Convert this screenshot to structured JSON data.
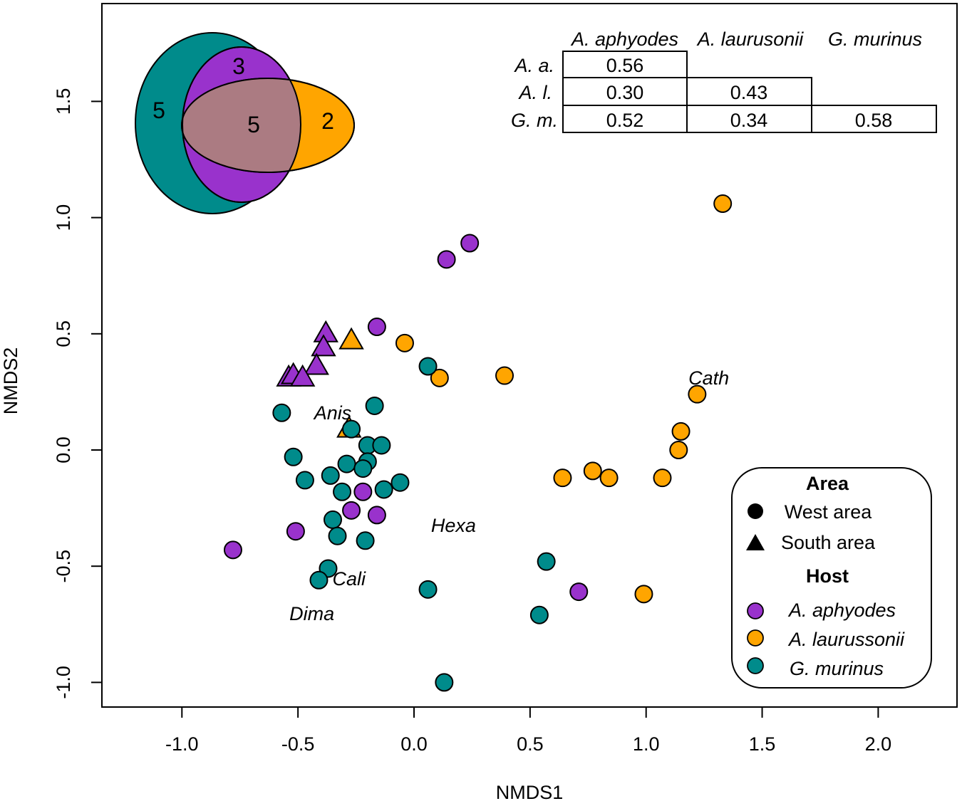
{
  "chart_data": {
    "type": "scatter",
    "xlabel": "NMDS1",
    "ylabel": "NMDS2",
    "xlim": [
      -1.34,
      2.34
    ],
    "ylim": [
      -1.1,
      1.92
    ],
    "xticks": [
      "-1.0",
      "-0.5",
      "0.0",
      "0.5",
      "1.0",
      "1.5",
      "2.0"
    ],
    "xtick_values": [
      -1.0,
      -0.5,
      0.0,
      0.5,
      1.0,
      1.5,
      2.0
    ],
    "yticks": [
      "-1.0",
      "-0.5",
      "0.0",
      "0.5",
      "1.0",
      "1.5"
    ],
    "ytick_values": [
      -1.0,
      -0.5,
      0.0,
      0.5,
      1.0,
      1.5
    ],
    "grid": false,
    "colors": {
      "A. aphyodes": "#9932CC",
      "A. laurussonii": "#FFA500",
      "G. murinus": "#008B8B",
      "overlap": "#AB7B82"
    },
    "series": [
      {
        "name": "A. aphyodes",
        "area": "West area",
        "marker": "circle",
        "color": "#9932CC",
        "points": [
          [
            0.14,
            0.82
          ],
          [
            0.24,
            0.89
          ],
          [
            -0.16,
            0.53
          ],
          [
            -0.22,
            -0.18
          ],
          [
            -0.27,
            -0.26
          ],
          [
            -0.16,
            -0.28
          ],
          [
            -0.51,
            -0.35
          ],
          [
            -0.78,
            -0.43
          ],
          [
            0.71,
            -0.61
          ]
        ]
      },
      {
        "name": "A. aphyodes",
        "area": "South area",
        "marker": "triangle",
        "color": "#9932CC",
        "points": [
          [
            -0.38,
            0.5
          ],
          [
            -0.39,
            0.44
          ],
          [
            -0.42,
            0.36
          ],
          [
            -0.54,
            0.31
          ],
          [
            -0.52,
            0.32
          ],
          [
            -0.48,
            0.31
          ]
        ]
      },
      {
        "name": "A. laurussonii",
        "area": "West area",
        "marker": "circle",
        "color": "#FFA500",
        "points": [
          [
            1.33,
            1.06
          ],
          [
            -0.04,
            0.46
          ],
          [
            0.11,
            0.31
          ],
          [
            0.39,
            0.32
          ],
          [
            1.22,
            0.24
          ],
          [
            1.15,
            0.08
          ],
          [
            1.14,
            0.0
          ],
          [
            0.64,
            -0.12
          ],
          [
            0.77,
            -0.09
          ],
          [
            0.84,
            -0.12
          ],
          [
            1.07,
            -0.12
          ],
          [
            0.99,
            -0.62
          ]
        ]
      },
      {
        "name": "A. laurussonii",
        "area": "South area",
        "marker": "triangle",
        "color": "#FFA500",
        "points": [
          [
            -0.27,
            0.47
          ],
          [
            -0.28,
            0.09
          ]
        ]
      },
      {
        "name": "G. murinus",
        "area": "West area",
        "marker": "circle",
        "color": "#008B8B",
        "points": [
          [
            0.06,
            0.36
          ],
          [
            -0.57,
            0.16
          ],
          [
            -0.17,
            0.19
          ],
          [
            -0.27,
            0.09
          ],
          [
            -0.2,
            0.02
          ],
          [
            -0.14,
            0.02
          ],
          [
            -0.52,
            -0.03
          ],
          [
            -0.2,
            -0.05
          ],
          [
            -0.29,
            -0.06
          ],
          [
            -0.22,
            -0.08
          ],
          [
            -0.36,
            -0.11
          ],
          [
            -0.47,
            -0.13
          ],
          [
            -0.31,
            -0.18
          ],
          [
            -0.13,
            -0.17
          ],
          [
            -0.06,
            -0.14
          ],
          [
            -0.35,
            -0.3
          ],
          [
            -0.33,
            -0.37
          ],
          [
            -0.21,
            -0.39
          ],
          [
            -0.37,
            -0.51
          ],
          [
            -0.41,
            -0.56
          ],
          [
            0.06,
            -0.6
          ],
          [
            0.57,
            -0.48
          ],
          [
            0.54,
            -0.71
          ],
          [
            0.13,
            -1.0
          ]
        ]
      }
    ],
    "annotations": [
      {
        "text": "Anis",
        "x": -0.35,
        "y": 0.16
      },
      {
        "text": "Cali",
        "x": -0.28,
        "y": -0.555
      },
      {
        "text": "Dima",
        "x": -0.44,
        "y": -0.705
      },
      {
        "text": "Hexa",
        "x": 0.17,
        "y": -0.325
      },
      {
        "text": "Cath",
        "x": 1.27,
        "y": 0.31
      }
    ],
    "venn": {
      "G. murinus only": "5",
      "A. aphyodes only": "3",
      "shared": "5",
      "A. laurussonii only": "2"
    },
    "similarity_table": {
      "columns": [
        "A. aphyodes",
        "A. laurusonii",
        "G. murinus"
      ],
      "rows": [
        {
          "label": "A. a.",
          "values": [
            "0.56"
          ]
        },
        {
          "label": "A. l.",
          "values": [
            "0.30",
            "0.43"
          ]
        },
        {
          "label": "G. m.",
          "values": [
            "0.52",
            "0.34",
            "0.58"
          ]
        }
      ]
    },
    "legend": {
      "placement": "bottom-right",
      "area_title": "Area",
      "area_items": [
        "West area",
        "South area"
      ],
      "host_title": "Host",
      "host_items": [
        "A. aphyodes",
        "A. laurussonii",
        "G. murinus"
      ]
    }
  }
}
